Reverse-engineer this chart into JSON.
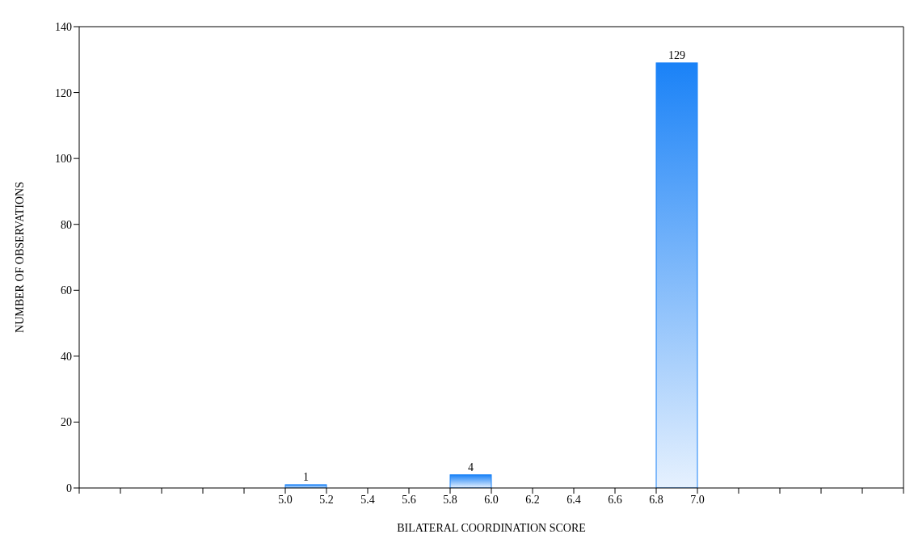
{
  "chart_data": {
    "type": "histogram",
    "xlabel": "BILATERAL COORDINATION SCORE",
    "ylabel": "NUMBER OF OBSERVATIONS",
    "bins": [
      5.0,
      5.2,
      5.4,
      5.6,
      5.8,
      6.0,
      6.2,
      6.4,
      6.6,
      6.8,
      7.0
    ],
    "values": [
      1,
      0,
      0,
      0,
      4,
      0,
      0,
      0,
      0,
      129
    ],
    "value_labels": [
      "1",
      null,
      null,
      null,
      "4",
      null,
      null,
      null,
      null,
      "129"
    ],
    "color": "#1a82f7",
    "xlim": [
      4.0,
      8.0
    ],
    "xticks": [
      {
        "value": 4.0,
        "label": null
      },
      {
        "value": 4.2,
        "label": null
      },
      {
        "value": 4.4,
        "label": null
      },
      {
        "value": 4.6,
        "label": null
      },
      {
        "value": 4.8,
        "label": null
      },
      {
        "value": 5.0,
        "label": "5.0"
      },
      {
        "value": 5.2,
        "label": "5.2"
      },
      {
        "value": 5.4,
        "label": "5.4"
      },
      {
        "value": 5.6,
        "label": "5.6"
      },
      {
        "value": 5.8,
        "label": "5.8"
      },
      {
        "value": 6.0,
        "label": "6.0"
      },
      {
        "value": 6.2,
        "label": "6.2"
      },
      {
        "value": 6.4,
        "label": "6.4"
      },
      {
        "value": 6.6,
        "label": "6.6"
      },
      {
        "value": 6.8,
        "label": "6.8"
      },
      {
        "value": 7.0,
        "label": "7.0"
      },
      {
        "value": 7.2,
        "label": null
      },
      {
        "value": 7.4,
        "label": null
      },
      {
        "value": 7.6,
        "label": null
      },
      {
        "value": 7.8,
        "label": null
      },
      {
        "value": 8.0,
        "label": null
      }
    ],
    "ylim": [
      0,
      140
    ],
    "yticks": [
      0,
      20,
      40,
      60,
      80,
      100,
      120,
      140
    ],
    "grid": false
  }
}
